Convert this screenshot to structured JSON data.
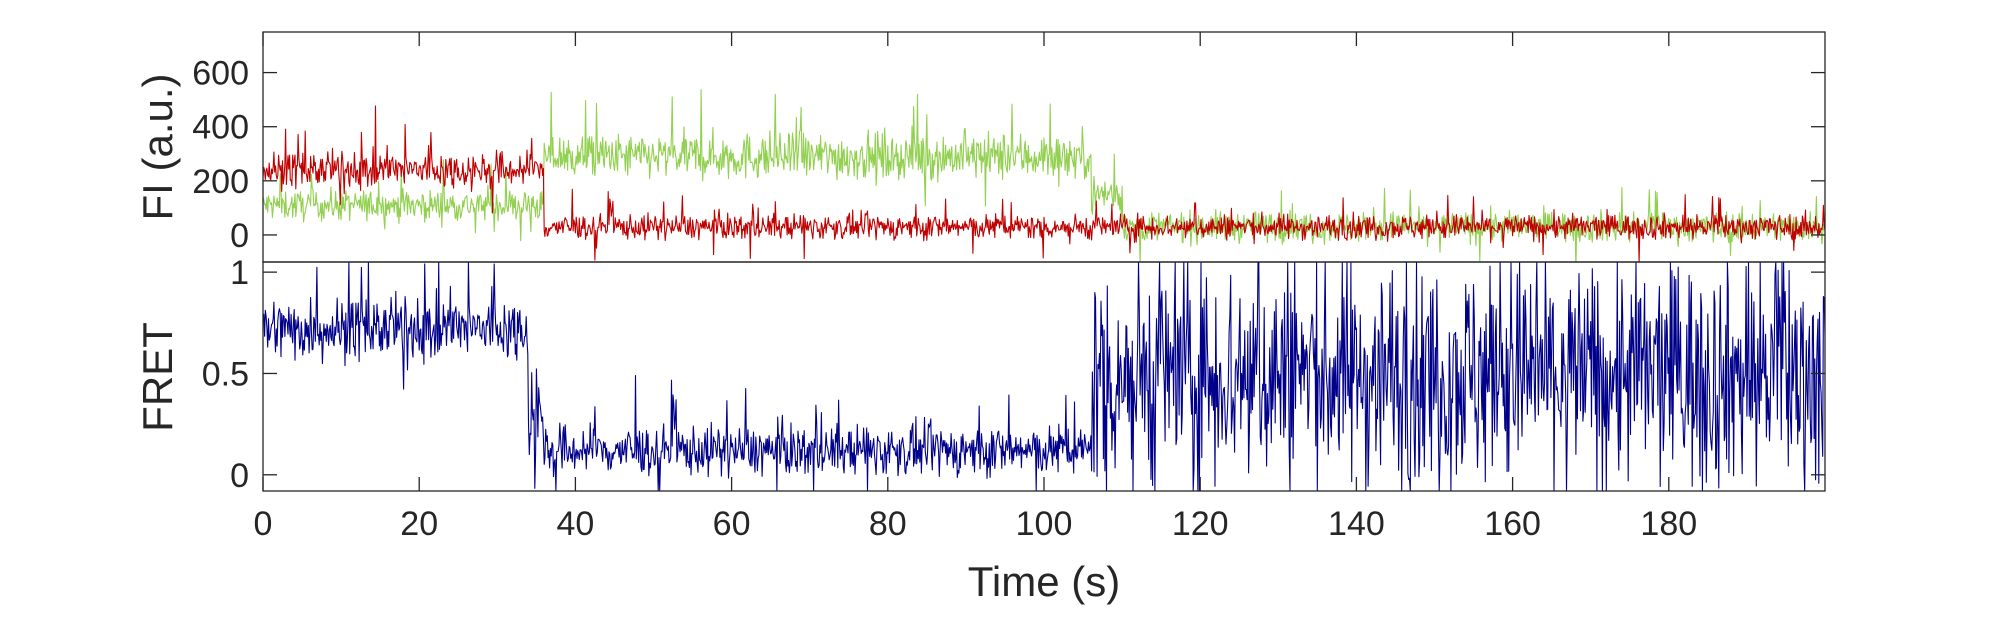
{
  "chart_data": [
    {
      "type": "line",
      "ylabel": "FI (a.u.)",
      "xlabel": "",
      "xlim": [
        0,
        200
      ],
      "ylim": [
        -100,
        750
      ],
      "yticks": [
        0,
        200,
        400,
        600
      ],
      "yticklabels": [
        "0",
        "200",
        "400",
        "600"
      ],
      "grid": false,
      "series": [
        {
          "color": "#92d050",
          "segments": [
            {
              "x0": 0,
              "x1": 36,
              "mean": 110,
              "noise": 55
            },
            {
              "x0": 36,
              "x1": 55,
              "mean": 290,
              "noise": 80
            },
            {
              "x0": 55,
              "x1": 106,
              "mean": 290,
              "noise": 85
            },
            {
              "x0": 106,
              "x1": 110,
              "mean": 150,
              "noise": 70
            },
            {
              "x0": 110,
              "x1": 200,
              "mean": 30,
              "noise": 55
            }
          ]
        },
        {
          "color": "#c00000",
          "segments": [
            {
              "x0": 0,
              "x1": 36,
              "mean": 240,
              "noise": 65
            },
            {
              "x0": 36,
              "x1": 106,
              "mean": 30,
              "noise": 45
            },
            {
              "x0": 106,
              "x1": 200,
              "mean": 30,
              "noise": 45
            }
          ]
        }
      ]
    },
    {
      "type": "line",
      "ylabel": "FRET",
      "xlabel": "Time (s)",
      "xlim": [
        0,
        200
      ],
      "ylim": [
        -0.08,
        1.05
      ],
      "yticks": [
        0,
        0.5,
        1
      ],
      "yticklabels": [
        "0",
        "0.5",
        "1"
      ],
      "xticks": [
        0,
        20,
        40,
        60,
        80,
        100,
        120,
        140,
        160,
        180
      ],
      "xticklabels": [
        "0",
        "20",
        "40",
        "60",
        "80",
        "100",
        "120",
        "140",
        "160",
        "180"
      ],
      "grid": false,
      "series": [
        {
          "color": "#00008b",
          "segments": [
            {
              "x0": 0,
              "x1": 34,
              "mean": 0.72,
              "noise": 0.15
            },
            {
              "x0": 34,
              "x1": 36,
              "mean": 0.3,
              "noise": 0.3
            },
            {
              "x0": 36,
              "x1": 106,
              "mean": 0.12,
              "noise": 0.12
            },
            {
              "x0": 106,
              "x1": 200,
              "mean": 0.5,
              "noise": 0.55
            }
          ]
        }
      ]
    }
  ]
}
